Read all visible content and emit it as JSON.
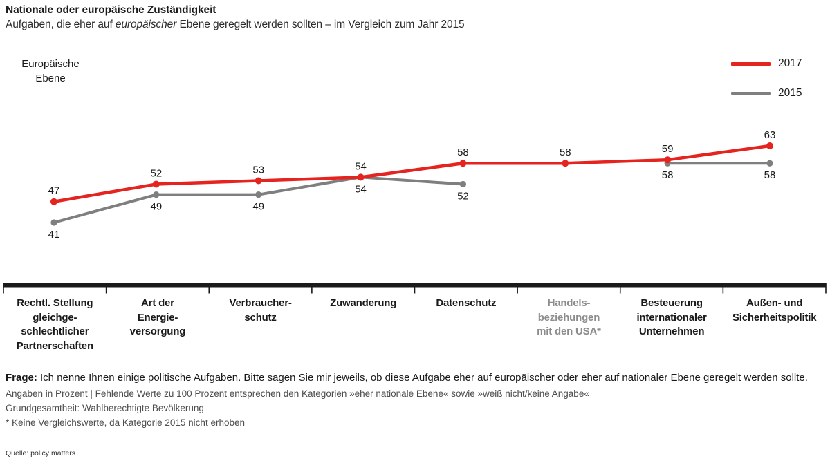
{
  "header": {
    "title": "Nationale oder europäische Zuständigkeit",
    "subtitle_prefix": "Aufgaben, die eher auf ",
    "subtitle_italic": "europäischer",
    "subtitle_suffix": " Ebene geregelt werden sollten – im Vergleich zum Jahr 2015"
  },
  "y_axis_label": {
    "line1": "Europäische",
    "line2": "Ebene"
  },
  "legend": [
    {
      "label": "2017",
      "color": "#e5231f"
    },
    {
      "label": "2015",
      "color": "#7f7f7f"
    }
  ],
  "chart_data": {
    "type": "line",
    "title": "Nationale oder europäische Zuständigkeit",
    "subtitle": "Aufgaben, die eher auf europäischer Ebene geregelt werden sollten – im Vergleich zum Jahr 2015",
    "y_axis_label": "Europäische Ebene",
    "unit": "Prozent",
    "grid": "off",
    "legend_position": "top-right",
    "ylim_implied": [
      41,
      63
    ],
    "categories": [
      {
        "label": "Rechtl. Stellung gleichgeschlechtlicher Partnerschaften",
        "lines": [
          "Rechtl. Stellung",
          "gleichge-",
          "schlechtlicher",
          "Partnerschaften"
        ],
        "muted": false
      },
      {
        "label": "Art der Energieversorgung",
        "lines": [
          "Art der",
          "Energie-",
          "versorgung"
        ],
        "muted": false
      },
      {
        "label": "Verbraucherschutz",
        "lines": [
          "Verbraucher-",
          "schutz"
        ],
        "muted": false
      },
      {
        "label": "Zuwanderung",
        "lines": [
          "Zuwanderung"
        ],
        "muted": false
      },
      {
        "label": "Datenschutz",
        "lines": [
          "Datenschutz"
        ],
        "muted": false
      },
      {
        "label": "Handelsbeziehungen mit den USA*",
        "lines": [
          "Handels-",
          "beziehungen",
          "mit den USA*"
        ],
        "muted": true
      },
      {
        "label": "Besteuerung internationaler Unternehmen",
        "lines": [
          "Besteuerung",
          "internationaler",
          "Unternehmen"
        ],
        "muted": false
      },
      {
        "label": "Außen- und Sicherheitspolitik",
        "lines": [
          "Außen- und",
          "Sicherheitspolitik"
        ],
        "muted": false
      }
    ],
    "series": [
      {
        "name": "2017",
        "color": "#e5231f",
        "value_label_position": "above",
        "values": [
          47,
          52,
          53,
          54,
          58,
          58,
          59,
          63
        ]
      },
      {
        "name": "2015",
        "color": "#7f7f7f",
        "value_label_position": "below",
        "values": [
          41,
          49,
          49,
          54,
          52,
          null,
          58,
          58
        ]
      }
    ]
  },
  "footer": {
    "frage_label": "Frage:",
    "frage_text": " Ich nenne Ihnen einige politische Aufgaben. Bitte sagen Sie mir jeweils, ob diese Aufgabe eher auf europäischer oder eher auf nationaler Ebene geregelt werden sollte.",
    "note1": "Angaben in Prozent | Fehlende Werte zu 100 Prozent entsprechen den Kategorien »eher nationale Ebene« sowie »weiß nicht/keine Angabe«",
    "note2": "Grundgesamtheit: Wahlberechtigte Bevölkerung",
    "note3": "* Keine Vergleichswerte, da Kategorie 2015 nicht erhoben",
    "source": "Quelle: policy matters"
  }
}
